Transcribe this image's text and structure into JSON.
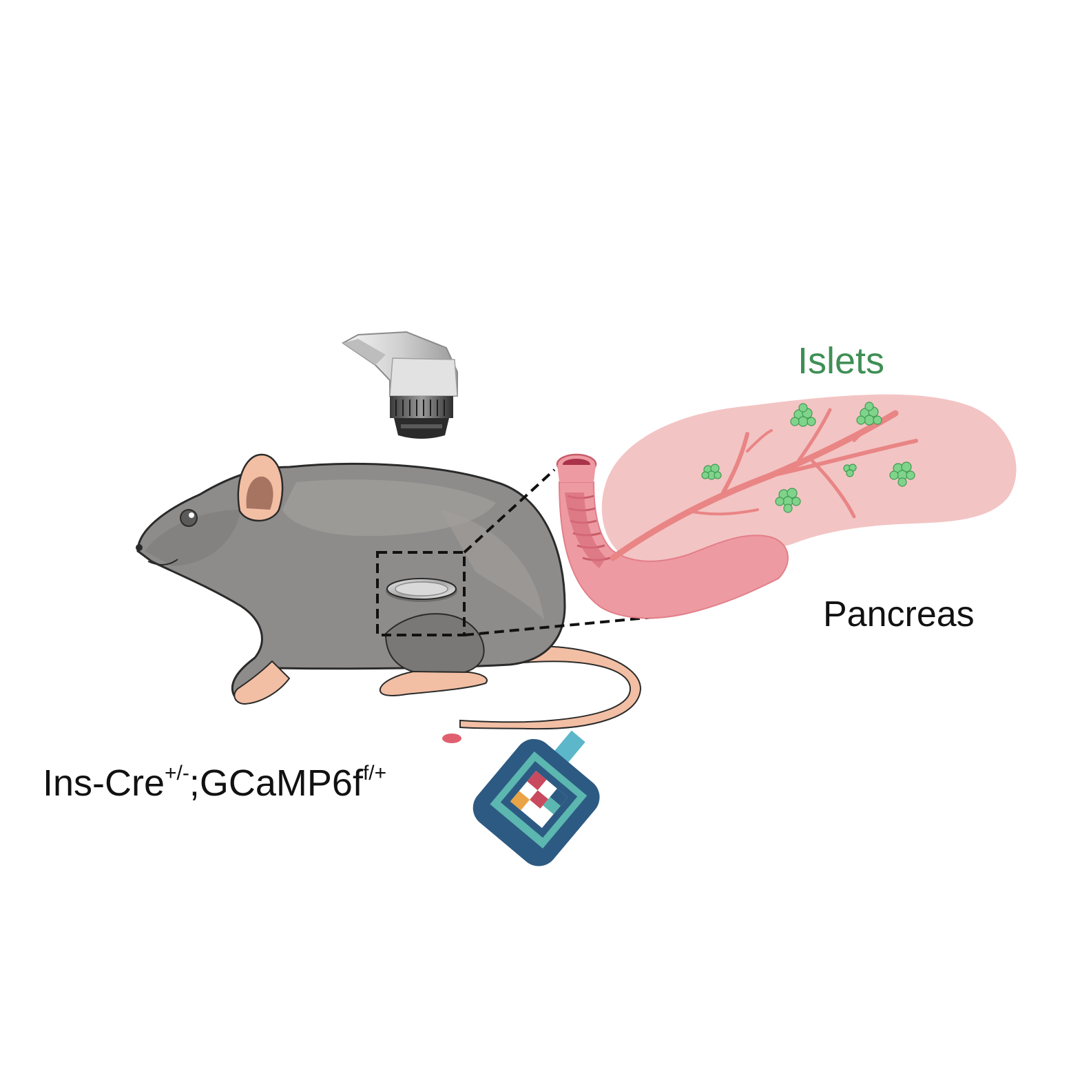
{
  "labels": {
    "islets": "Islets",
    "pancreas": "Pancreas",
    "genotype": {
      "base1": "Ins-Cre",
      "sup1": "+/-",
      "base2": ";GCaMP6f",
      "sup2": "f/+"
    }
  },
  "colors": {
    "mouse_body": "#8e8c8a",
    "mouse_outline": "#2a2a2a",
    "mouse_skin": "#f2bfa4",
    "pancreas_tissue": "#f3c4c4",
    "duodenum": "#ee9aa2",
    "vessel": "#e98585",
    "islet": "#7fd38a",
    "islet_text": "#3f8f55",
    "meter_body": "#2d5a82",
    "meter_screen": "#5bb7b0",
    "blood_drop": "#e06070"
  },
  "icons": [
    "microscope-objective-icon",
    "imaging-window-icon",
    "glucometer-icon",
    "blood-drop-icon"
  ]
}
